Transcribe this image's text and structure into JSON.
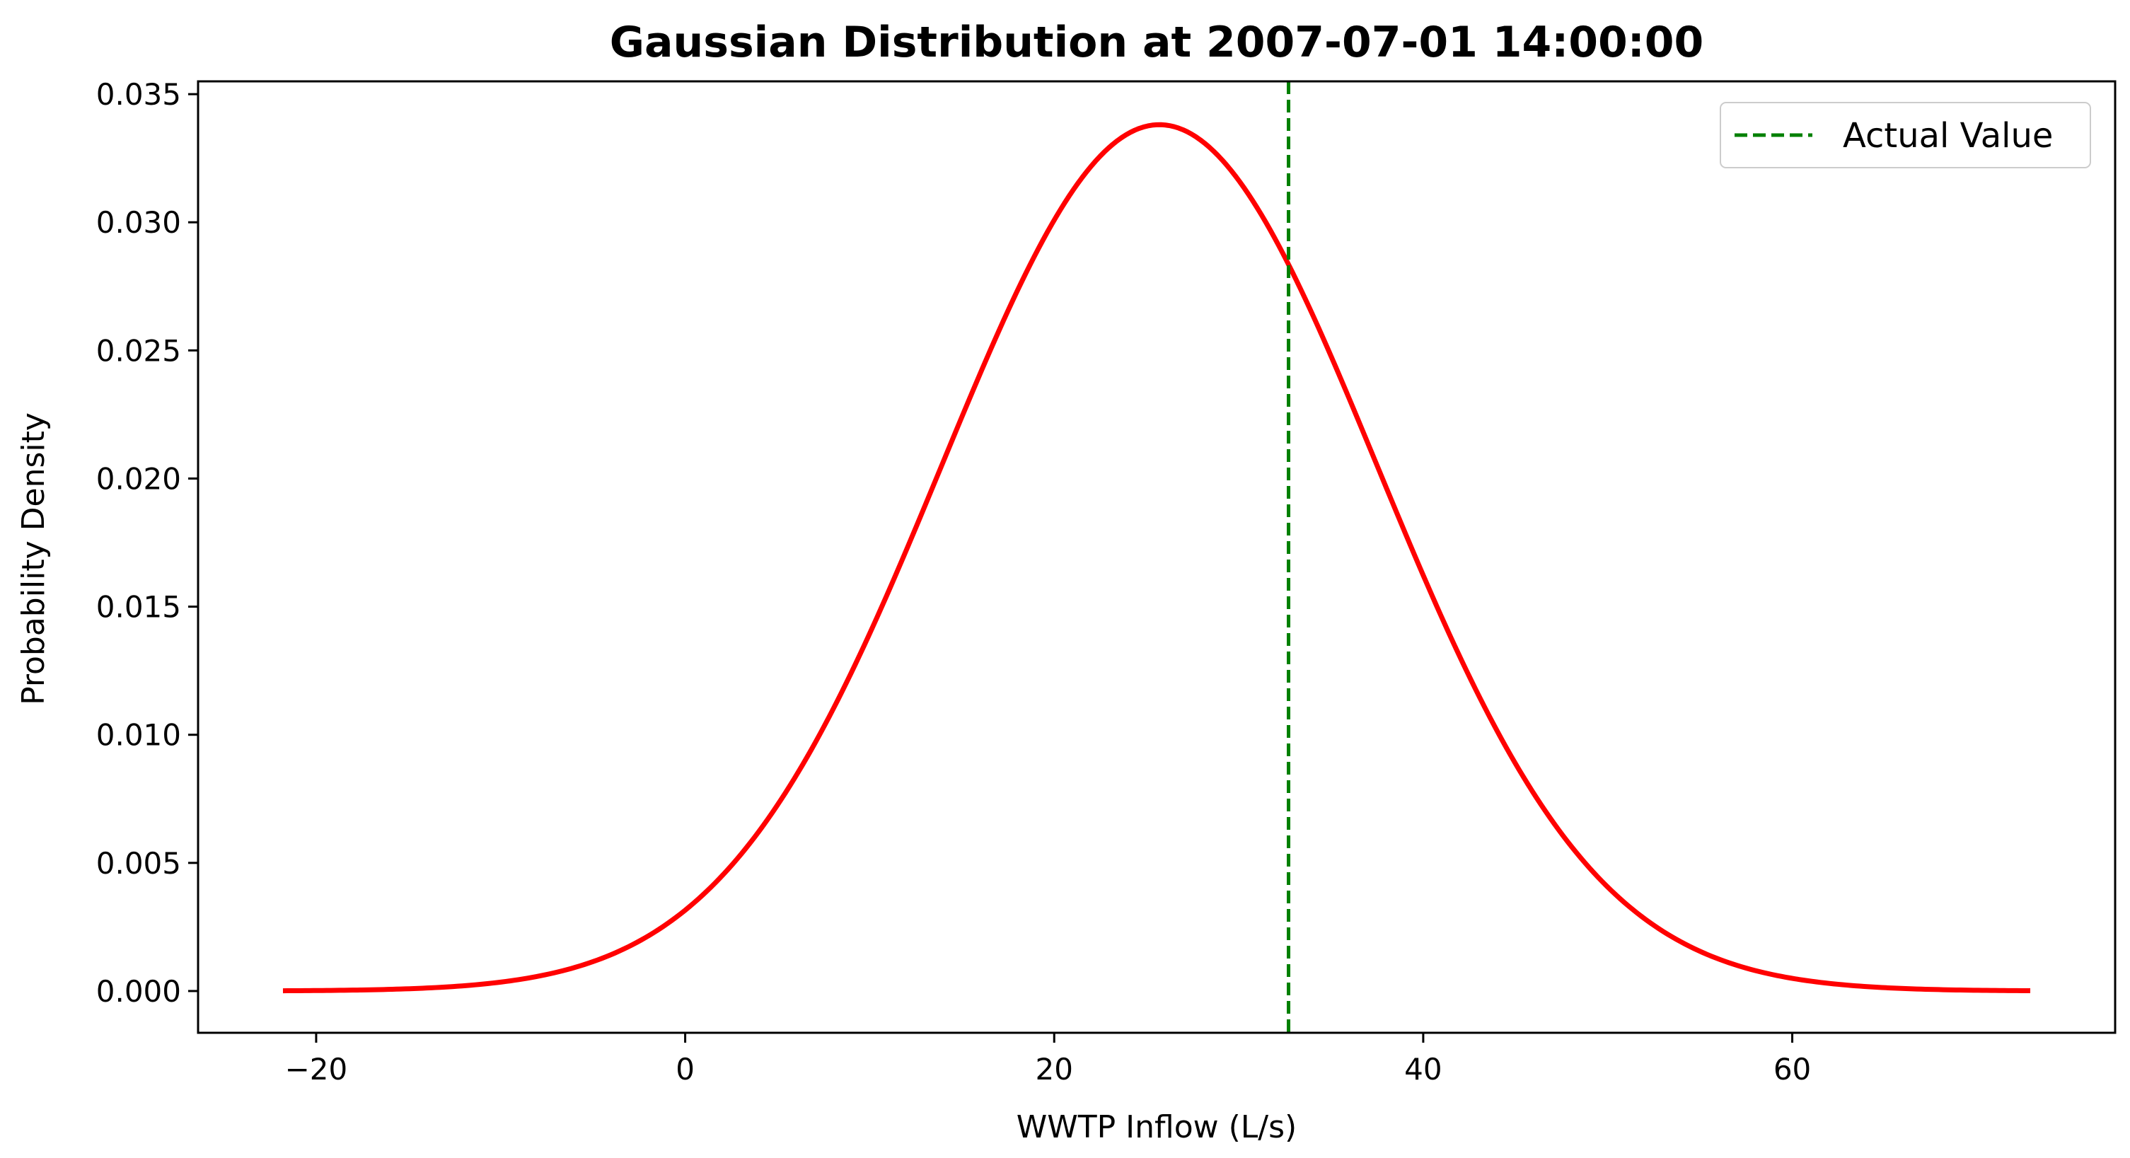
{
  "chart_data": {
    "type": "line",
    "title": "Gaussian Distribution at 2007-07-01 14:00:00",
    "xlabel": "WWTP Inflow (L/s)",
    "ylabel": "Probability Density",
    "xlim": [
      -26.4,
      77.5
    ],
    "ylim": [
      -0.00163,
      0.0355
    ],
    "x_ticks": [
      -20,
      0,
      20,
      40,
      60
    ],
    "x_tick_labels": [
      "−20",
      "0",
      "20",
      "40",
      "60"
    ],
    "y_ticks": [
      0.0,
      0.005,
      0.01,
      0.015,
      0.02,
      0.025,
      0.03,
      0.035
    ],
    "y_tick_labels": [
      "0.000",
      "0.005",
      "0.010",
      "0.015",
      "0.020",
      "0.025",
      "0.030",
      "0.035"
    ],
    "grid": false,
    "legend_position": "top-right",
    "series": [
      {
        "kind": "curve",
        "color": "#ff0000",
        "line_style": "solid",
        "distribution": "gaussian",
        "mean": 25.7,
        "std": 11.8,
        "x_range": [
          -21.8,
          72.9
        ]
      },
      {
        "name": "Actual Value",
        "kind": "vertical-line",
        "color": "#008000",
        "line_style": "dashed",
        "x": 32.7
      }
    ]
  }
}
